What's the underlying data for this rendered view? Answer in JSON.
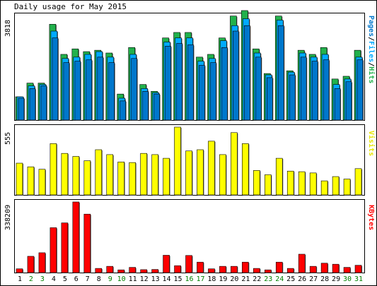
{
  "chart_data": {
    "type": "bar",
    "title": "Daily usage for May 2015",
    "categories": [
      "1",
      "2",
      "3",
      "4",
      "5",
      "6",
      "7",
      "8",
      "9",
      "10",
      "11",
      "12",
      "13",
      "14",
      "15",
      "16",
      "17",
      "18",
      "19",
      "20",
      "21",
      "22",
      "23",
      "24",
      "25",
      "26",
      "27",
      "28",
      "29",
      "30",
      "31"
    ],
    "weekend_days": [
      "2",
      "3",
      "9",
      "10",
      "16",
      "17",
      "23",
      "24",
      "30",
      "31"
    ],
    "colors": {
      "hits": "#22b14c",
      "files": "#00aaff",
      "pages": "#0077cc",
      "visits": "#ffff00",
      "kbytes": "#ff0000",
      "weekday_label": "#000000",
      "weekend_label": "#008000"
    },
    "panels": [
      {
        "name": "pages-files-hits",
        "ymax_label": "3818",
        "ymax": 3818,
        "right_legend": [
          {
            "text": "Pages",
            "color": "#0077cc"
          },
          {
            "text": "/",
            "color": "#000000"
          },
          {
            "text": "Files",
            "color": "#00aaff"
          },
          {
            "text": "/",
            "color": "#000000"
          },
          {
            "text": "Hits",
            "color": "#22b14c"
          }
        ],
        "series": [
          {
            "name": "Hits",
            "values": [
              850,
              1350,
              1350,
              3500,
              2400,
              2600,
              2500,
              2550,
              2450,
              950,
              2650,
              1300,
              1050,
              3000,
              3200,
              3200,
              2300,
              2400,
              3000,
              3800,
              4000,
              2600,
              1700,
              3800,
              1800,
              2550,
              2400,
              2650,
              1500,
              1600,
              2550
            ]
          },
          {
            "name": "Files",
            "values": [
              850,
              1250,
              1300,
              3250,
              2250,
              2300,
              2400,
              2500,
              2300,
              800,
              2400,
              1150,
              1000,
              2850,
              3000,
              3000,
              2150,
              2250,
              2900,
              3450,
              3700,
              2450,
              1650,
              3650,
              1750,
              2450,
              2300,
              2400,
              1300,
              1500,
              2300
            ]
          },
          {
            "name": "Pages",
            "values": [
              800,
              1150,
              1250,
              3000,
              2100,
              2150,
              2200,
              2300,
              2100,
              700,
              2250,
              1050,
              950,
              2700,
              2800,
              2750,
              2000,
              2100,
              2650,
              3250,
              3450,
              2300,
              1550,
              3450,
              1650,
              2300,
              2150,
              2200,
              1150,
              1400,
              2200
            ]
          }
        ]
      },
      {
        "name": "visits",
        "ymax_label": "555",
        "ymax": 555,
        "right_legend": [
          {
            "text": "Visits",
            "color": "#ffff00"
          }
        ],
        "series": [
          {
            "name": "Visits",
            "values": [
              260,
              230,
              210,
              420,
              340,
              315,
              280,
              370,
              330,
              270,
              265,
              340,
              330,
              300,
              555,
              360,
              370,
              440,
              330,
              510,
              420,
              200,
              165,
              300,
              195,
              190,
              180,
              115,
              150,
              130,
              215
            ]
          }
        ]
      },
      {
        "name": "kbytes",
        "ymax_label": "338209",
        "ymax": 338209,
        "right_legend": [
          {
            "text": "KBytes",
            "color": "#ff0000"
          }
        ],
        "series": [
          {
            "name": "KBytes",
            "values": [
              18000,
              78000,
              95000,
              215000,
              238000,
              338209,
              280000,
              20000,
              30000,
              13000,
              25000,
              14000,
              15000,
              83000,
              33000,
              82000,
              50000,
              18000,
              30000,
              30000,
              50000,
              20000,
              13000,
              50000,
              20000,
              88000,
              30000,
              45000,
              40000,
              25000,
              35000
            ]
          }
        ]
      }
    ]
  }
}
